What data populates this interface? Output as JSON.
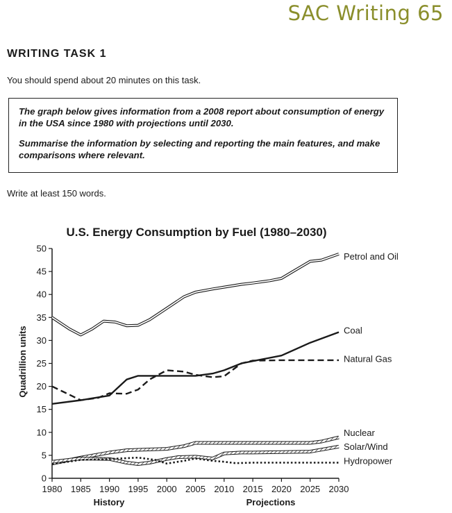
{
  "header": {
    "brand": "SAC Writing 65"
  },
  "task": {
    "title": "WRITING TASK 1",
    "instruction": "You should spend about 20 minutes on this task.",
    "prompt_line1": "The graph below gives information from a 2008 report about consumption of energy in the USA since 1980 with projections until 2030.",
    "prompt_line2": "Summarise the information by selecting and reporting the main features, and make comparisons where relevant.",
    "min_words": "Write at least 150 words."
  },
  "chart_data": {
    "type": "line",
    "title": "U.S. Energy Consumption by Fuel (1980–2030)",
    "xlabel": "",
    "ylabel": "Quadrillion units",
    "x_section_labels": [
      "History",
      "Projections"
    ],
    "xlim": [
      1980,
      2030
    ],
    "ylim": [
      0,
      50
    ],
    "x_ticks": [
      "1980",
      "1985",
      "1990",
      "1995",
      "2000",
      "2005",
      "2010",
      "2015",
      "2020",
      "2025",
      "2030"
    ],
    "y_ticks": [
      "0",
      "5",
      "10",
      "15",
      "20",
      "25",
      "30",
      "35",
      "40",
      "45",
      "50"
    ],
    "grid": false,
    "legend": "labels at line ends (right)",
    "series": [
      {
        "name": "Petrol and Oil",
        "style": "double",
        "x": [
          1980,
          1983,
          1985,
          1987,
          1989,
          1991,
          1993,
          1995,
          1997,
          2000,
          2003,
          2005,
          2008,
          2010,
          2013,
          2015,
          2018,
          2020,
          2022,
          2025,
          2027,
          2030
        ],
        "y": [
          35,
          32.5,
          31.2,
          32.5,
          34.2,
          34,
          33.2,
          33.3,
          34.5,
          37,
          39.5,
          40.5,
          41.2,
          41.6,
          42.2,
          42.5,
          43,
          43.5,
          45,
          47.2,
          47.5,
          48.8
        ]
      },
      {
        "name": "Coal",
        "style": "solid",
        "x": [
          1980,
          1985,
          1990,
          1993,
          1995,
          2000,
          2005,
          2008,
          2010,
          2013,
          2015,
          2020,
          2025,
          2030
        ],
        "y": [
          16.2,
          17,
          18,
          21.5,
          22.3,
          22.3,
          22.3,
          22.8,
          23.5,
          25,
          25.5,
          26.7,
          29.5,
          31.8
        ]
      },
      {
        "name": "Natural Gas",
        "style": "dashed",
        "x": [
          1980,
          1982,
          1985,
          1988,
          1990,
          1993,
          1995,
          1997,
          2000,
          2003,
          2005,
          2008,
          2010,
          2013,
          2015,
          2020,
          2025,
          2030
        ],
        "y": [
          20,
          18.8,
          17,
          17.5,
          18.5,
          18.4,
          19.3,
          21.5,
          23.5,
          23.2,
          22.5,
          22,
          22.2,
          25,
          25.6,
          25.7,
          25.7,
          25.7
        ]
      },
      {
        "name": "Nuclear",
        "style": "hatched",
        "x": [
          1980,
          1985,
          1990,
          1993,
          1995,
          2000,
          2003,
          2005,
          2008,
          2010,
          2015,
          2020,
          2025,
          2027,
          2030
        ],
        "y": [
          3.2,
          4.5,
          5.6,
          6.1,
          6.2,
          6.4,
          7,
          7.7,
          7.7,
          7.7,
          7.7,
          7.7,
          7.7,
          8,
          8.9
        ]
      },
      {
        "name": "Solar/Wind",
        "style": "hatched",
        "x": [
          1980,
          1985,
          1990,
          1993,
          1995,
          1997,
          2000,
          2002,
          2005,
          2008,
          2010,
          2013,
          2015,
          2020,
          2025,
          2030
        ],
        "y": [
          3.6,
          4.3,
          4.2,
          3.4,
          3.1,
          3.4,
          4.2,
          4.6,
          4.7,
          4.3,
          5.4,
          5.6,
          5.6,
          5.7,
          5.8,
          6.9
        ]
      },
      {
        "name": "Hydropower",
        "style": "dotted",
        "x": [
          1980,
          1985,
          1990,
          1995,
          1998,
          2000,
          2003,
          2005,
          2008,
          2010,
          2012,
          2015,
          2020,
          2025,
          2030
        ],
        "y": [
          3.1,
          4,
          4.2,
          4.5,
          4,
          3.2,
          3.8,
          4.3,
          3.8,
          3.6,
          3.3,
          3.4,
          3.4,
          3.4,
          3.4
        ]
      }
    ],
    "colors": {
      "ink": "#1a1a1a",
      "background": "#ffffff"
    }
  }
}
